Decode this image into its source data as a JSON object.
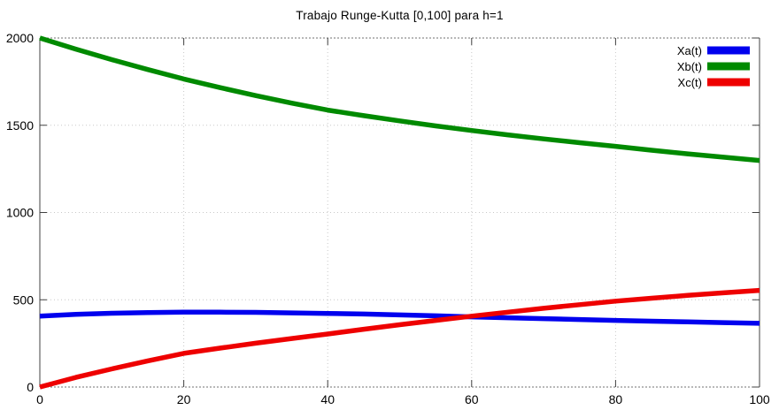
{
  "chart_data": {
    "type": "line",
    "title": "Trabajo Runge-Kutta [0,100] para h=1",
    "xlabel": "",
    "ylabel": "",
    "xlim": [
      0,
      100
    ],
    "ylim": [
      0,
      2000
    ],
    "xticks": [
      0,
      20,
      40,
      60,
      80,
      100
    ],
    "yticks": [
      0,
      500,
      1000,
      1500,
      2000
    ],
    "grid": true,
    "legend_position": "top-right",
    "x": [
      0,
      5,
      10,
      15,
      20,
      25,
      30,
      35,
      40,
      45,
      50,
      55,
      60,
      65,
      70,
      75,
      80,
      85,
      90,
      95,
      100
    ],
    "series": [
      {
        "name": "Xa(t)",
        "color": "#0000ee",
        "values": [
          406,
          416,
          423,
          427,
          429,
          429,
          428,
          425,
          422,
          418,
          413,
          408,
          402,
          397,
          392,
          387,
          382,
          377,
          373,
          369,
          365
        ]
      },
      {
        "name": "Xb(t)",
        "color": "#008a00",
        "values": [
          2000,
          1936,
          1876,
          1819,
          1765,
          1716,
          1670,
          1627,
          1587,
          1555,
          1525,
          1496,
          1470,
          1445,
          1422,
          1400,
          1379,
          1357,
          1336,
          1317,
          1298
        ]
      },
      {
        "name": "Xc(t)",
        "color": "#ee0000",
        "values": [
          0,
          55,
          104,
          150,
          193,
          223,
          251,
          278,
          304,
          331,
          357,
          382,
          406,
          429,
          451,
          472,
          492,
          509,
          525,
          540,
          554
        ]
      }
    ]
  },
  "colors": {
    "border_solid": "#404040",
    "border_dotted": "#707070",
    "grid": "#c8c8c8",
    "text": "#000000"
  }
}
